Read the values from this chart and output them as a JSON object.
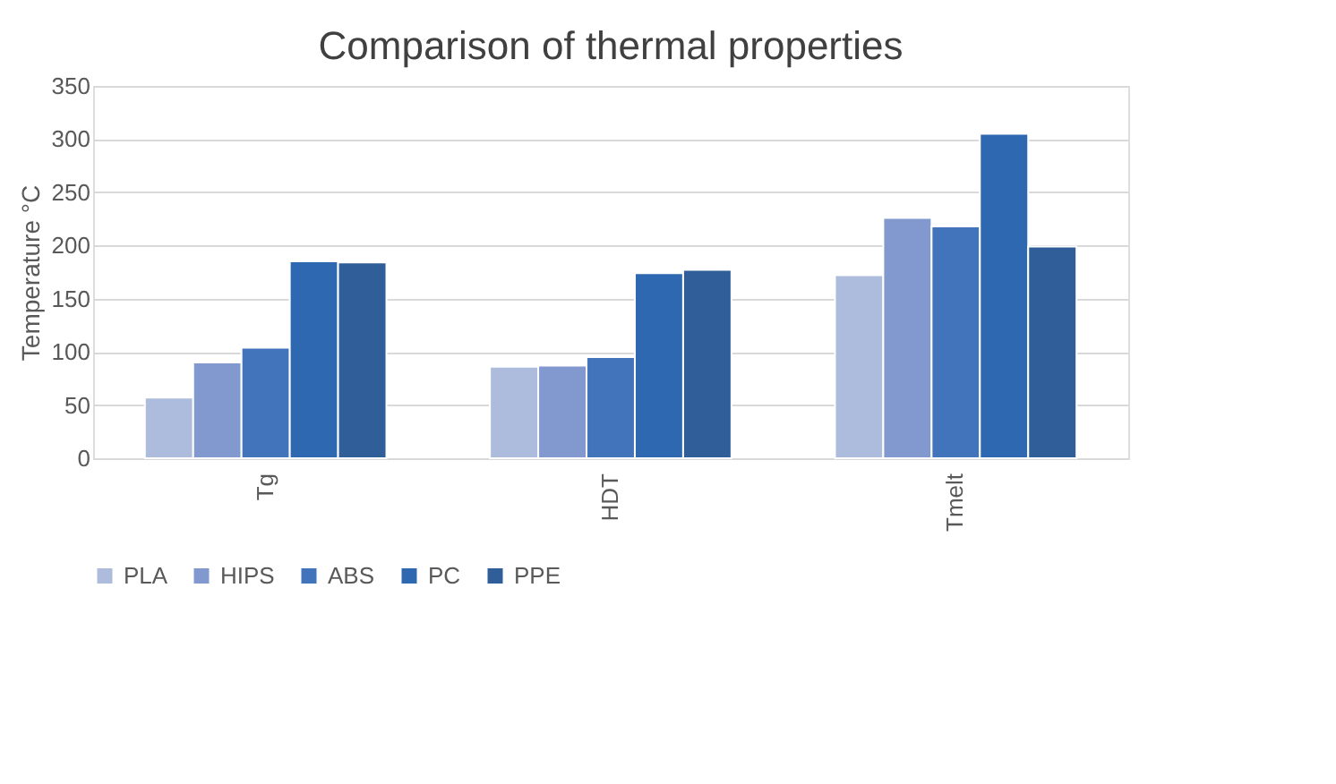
{
  "chart_data": {
    "type": "bar",
    "title": "Comparison of thermal properties",
    "ylabel": "Temperature °C",
    "categories": [
      "Tg",
      "HDT",
      "Tmelt"
    ],
    "series": [
      {
        "name": "PLA",
        "color": "#adbcdd",
        "values": [
          57,
          86,
          172
        ]
      },
      {
        "name": "HIPS",
        "color": "#8299d0",
        "values": [
          90,
          87,
          226
        ]
      },
      {
        "name": "ABS",
        "color": "#4274bb",
        "values": [
          104,
          95,
          218
        ]
      },
      {
        "name": "PC",
        "color": "#2e68b1",
        "values": [
          185,
          174,
          305
        ]
      },
      {
        "name": "PPE",
        "color": "#305e99",
        "values": [
          184,
          177,
          199
        ]
      }
    ],
    "ylim": [
      0,
      350
    ],
    "yticks": [
      0,
      50,
      100,
      150,
      200,
      250,
      300,
      350
    ],
    "grid": "y",
    "legend": "bottom"
  }
}
